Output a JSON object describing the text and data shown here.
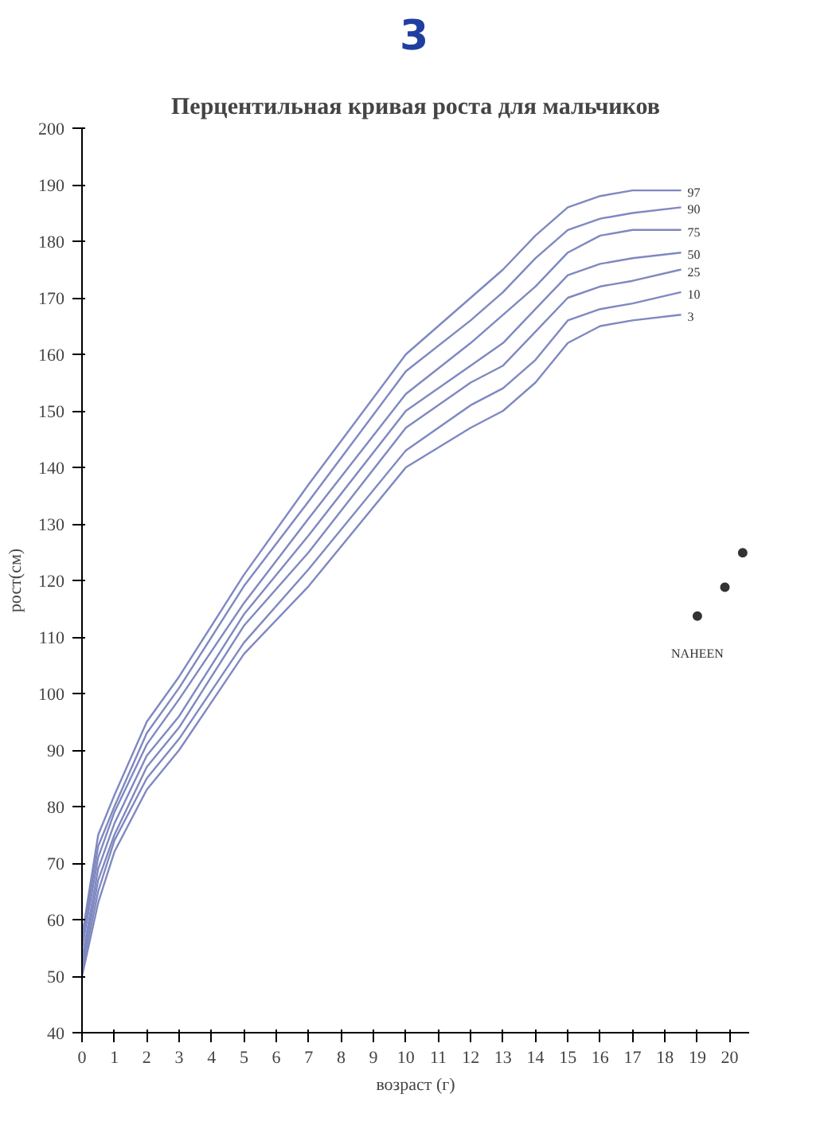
{
  "chart_data": {
    "type": "line",
    "title": "Перцентильная кривая роста для мальчиков",
    "xlabel": "возраст (г)",
    "ylabel": "рост(см)",
    "x": [
      0,
      0.5,
      1,
      2,
      3,
      5,
      7,
      10,
      12,
      13,
      14,
      15,
      16,
      17,
      18.5
    ],
    "series": [
      {
        "name": "97",
        "color": "#7f88c0",
        "values": [
          57,
          75,
          82,
          95,
          103,
          121,
          137,
          160,
          170,
          175,
          181,
          186,
          188,
          189,
          189
        ]
      },
      {
        "name": "90",
        "color": "#7f88c0",
        "values": [
          56,
          73,
          80,
          93,
          101,
          119,
          134,
          157,
          166,
          171,
          177,
          182,
          184,
          185,
          186
        ]
      },
      {
        "name": "75",
        "color": "#7f88c0",
        "values": [
          55,
          71,
          79,
          91,
          99,
          116,
          131,
          153,
          162,
          167,
          172,
          178,
          181,
          182,
          182
        ]
      },
      {
        "name": "50",
        "color": "#7f88c0",
        "values": [
          53,
          69,
          77,
          89,
          96,
          114,
          128,
          150,
          158,
          162,
          168,
          174,
          176,
          177,
          178
        ]
      },
      {
        "name": "25",
        "color": "#7f88c0",
        "values": [
          52,
          67,
          75,
          87,
          94,
          112,
          125,
          147,
          155,
          158,
          164,
          170,
          172,
          173,
          175
        ]
      },
      {
        "name": "10",
        "color": "#7f88c0",
        "values": [
          51,
          65,
          74,
          85,
          92,
          109,
          122,
          143,
          151,
          154,
          159,
          166,
          168,
          169,
          171
        ]
      },
      {
        "name": "3",
        "color": "#7f88c0",
        "values": [
          50,
          63,
          72,
          83,
          90,
          107,
          119,
          140,
          147,
          150,
          155,
          162,
          165,
          166,
          167
        ]
      },
      {
        "type": "scatter",
        "marker": "circle",
        "color": "#333333",
        "x": [
          19.0,
          19.85,
          20.4
        ],
        "values": [
          113.7,
          118.8,
          124.9
        ]
      }
    ],
    "annotations": [
      "3",
      "NAHEEN"
    ],
    "xlim": [
      0,
      20.6
    ],
    "ylim": [
      40,
      200
    ],
    "xticks": [
      0,
      1,
      2,
      3,
      4,
      5,
      6,
      7,
      8,
      9,
      10,
      11,
      12,
      13,
      14,
      15,
      16,
      17,
      18,
      19,
      20
    ],
    "yticks": [
      40,
      50,
      60,
      70,
      80,
      90,
      100,
      110,
      120,
      130,
      140,
      150,
      160,
      170,
      180,
      190,
      200
    ],
    "grid": false,
    "marker": "none",
    "line_style": "solid"
  }
}
